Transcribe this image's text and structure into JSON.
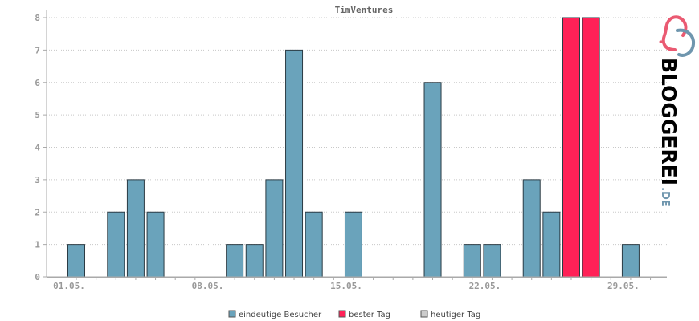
{
  "chart_data": {
    "type": "bar",
    "title": "TimVentures",
    "ylim": [
      0,
      8
    ],
    "y_ticks": [
      "0",
      "1",
      "2",
      "3",
      "4",
      "5",
      "6",
      "7",
      "8"
    ],
    "x_ticks": [
      {
        "label": "01.05.",
        "day": 1
      },
      {
        "label": "08.05.",
        "day": 8
      },
      {
        "label": "15.05.",
        "day": 15
      },
      {
        "label": "22.05.",
        "day": 22
      },
      {
        "label": "29.05.",
        "day": 29
      }
    ],
    "grid": true,
    "legend_position": "bottom",
    "series": [
      {
        "name": "eindeutige Besucher",
        "color": "#6aa3bb",
        "points": [
          {
            "day": 1,
            "value": 1
          },
          {
            "day": 3,
            "value": 2
          },
          {
            "day": 4,
            "value": 3
          },
          {
            "day": 5,
            "value": 2
          },
          {
            "day": 9,
            "value": 1
          },
          {
            "day": 10,
            "value": 1
          },
          {
            "day": 11,
            "value": 3
          },
          {
            "day": 12,
            "value": 7
          },
          {
            "day": 13,
            "value": 2
          },
          {
            "day": 15,
            "value": 2
          },
          {
            "day": 19,
            "value": 6
          },
          {
            "day": 21,
            "value": 1
          },
          {
            "day": 22,
            "value": 1
          },
          {
            "day": 24,
            "value": 3
          },
          {
            "day": 25,
            "value": 2
          },
          {
            "day": 29,
            "value": 1
          }
        ]
      },
      {
        "name": "bester Tag",
        "color": "#ff2157",
        "points": [
          {
            "day": 26,
            "value": 8
          },
          {
            "day": 27,
            "value": 8
          }
        ]
      },
      {
        "name": "heutiger Tag",
        "color": "#cccccc",
        "points": []
      }
    ]
  },
  "logo": {
    "text": "BLOGGEREI",
    "suffix": ".DE"
  }
}
